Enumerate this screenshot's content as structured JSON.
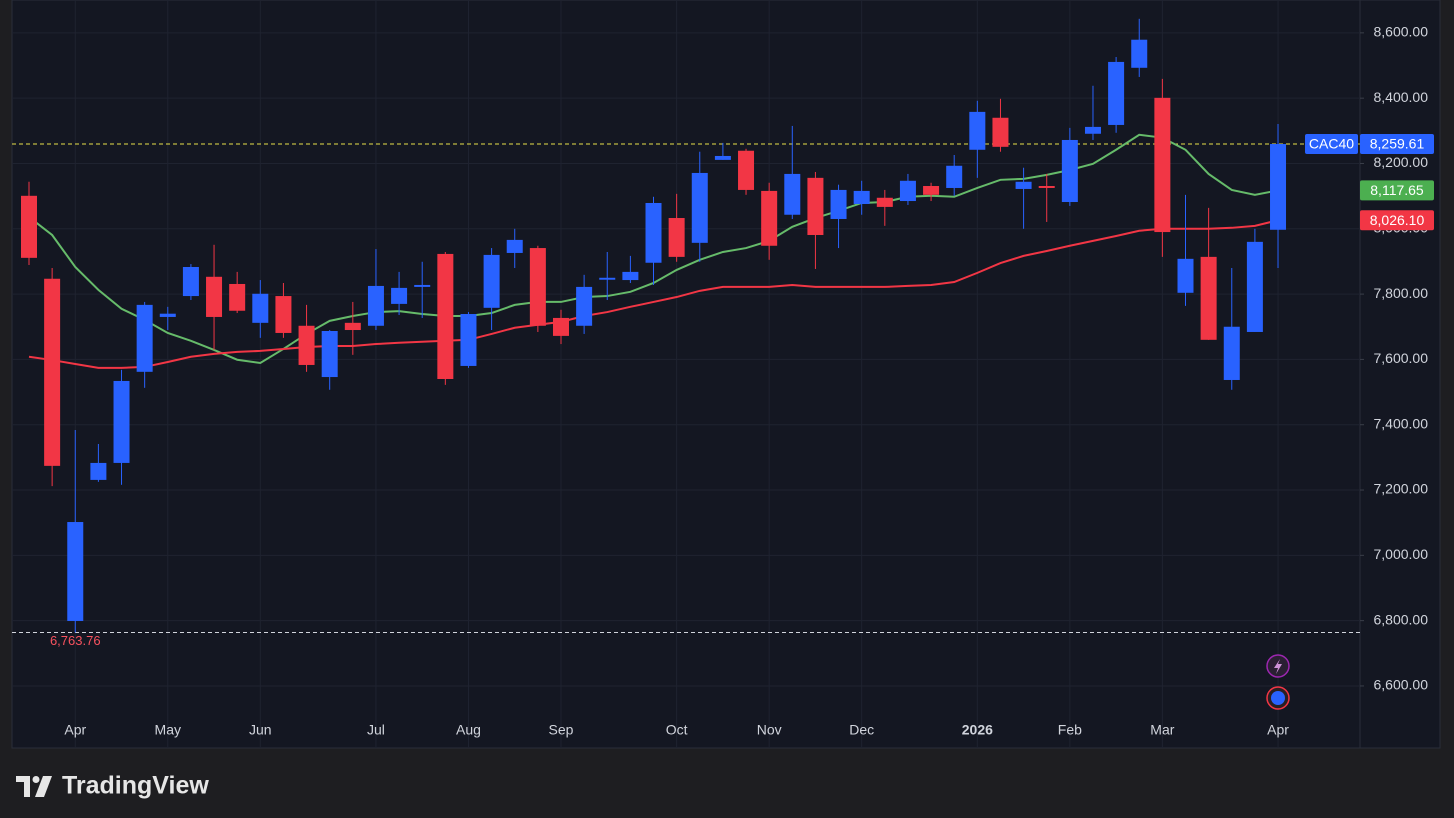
{
  "chart_data": {
    "type": "candlestick",
    "categories": [
      null,
      null,
      "Apr",
      null,
      null,
      null,
      "May",
      null,
      null,
      null,
      "Jun",
      null,
      null,
      null,
      null,
      "Jul",
      null,
      null,
      null,
      "Aug",
      null,
      null,
      null,
      "Sep",
      null,
      null,
      null,
      null,
      "Oct",
      null,
      null,
      null,
      "Nov",
      null,
      null,
      null,
      "Dec",
      null,
      null,
      null,
      null,
      "2026",
      null,
      null,
      null,
      "Feb",
      null,
      null,
      null,
      "Mar",
      null,
      null,
      null,
      null,
      "Apr"
    ],
    "series": [
      {
        "name": "CAC40",
        "up_color": "#2962ff",
        "down_color": "#f23645",
        "open": [
          8101,
          7847,
          6799,
          7231,
          7283,
          7562,
          7730,
          7794,
          7853,
          7831,
          7712,
          7794,
          7703,
          7546,
          7712,
          7703,
          7770,
          7822,
          7923,
          7580,
          7758,
          7926,
          7941,
          7727,
          7703,
          7844,
          7843,
          7896,
          8033,
          7957,
          8211,
          8239,
          8116,
          8043,
          8156,
          8030,
          8076,
          8095,
          8085,
          8131,
          8125,
          8242,
          8340,
          8122,
          8131,
          8082,
          8291,
          8318,
          8493,
          8401,
          7804,
          7914,
          7537,
          7684,
          7997
        ],
        "high": [
          8144,
          7880,
          7384,
          7341,
          7568,
          7776,
          7761,
          7892,
          7951,
          7868,
          7843,
          7834,
          7767,
          7690,
          7776,
          7938,
          7868,
          7899,
          7929,
          7745,
          7941,
          8000,
          7948,
          7752,
          7859,
          7929,
          7917,
          8098,
          8107,
          8236,
          8263,
          8245,
          8141,
          8315,
          8174,
          8135,
          8147,
          8119,
          8168,
          8141,
          8226,
          8392,
          8398,
          8187,
          8168,
          8309,
          8438,
          8526,
          8643,
          8459,
          8104,
          8064,
          7880,
          8000,
          8321
        ],
        "low": [
          7889,
          7212,
          6763.76,
          7225,
          7216,
          7513,
          7690,
          7782,
          7629,
          7742,
          7666,
          7666,
          7562,
          7507,
          7614,
          7690,
          7736,
          7727,
          7522,
          7574,
          7690,
          7880,
          7684,
          7647,
          7678,
          7782,
          7834,
          7828,
          7899,
          7899,
          8211,
          8104,
          7905,
          8030,
          7877,
          7941,
          8043,
          8009,
          8073,
          8085,
          8101,
          8156,
          8236,
          8000,
          8021,
          8070,
          8272,
          8294,
          8465,
          7914,
          7764,
          7660,
          7507,
          7684,
          7880
        ],
        "close": [
          7911,
          7274,
          7102,
          7283,
          7534,
          7767,
          7740,
          7883,
          7730,
          7749,
          7801,
          7681,
          7583,
          7687,
          7690,
          7825,
          7819,
          7828,
          7540,
          7739,
          7920,
          7966,
          7703,
          7672,
          7822,
          7850,
          7868,
          8079,
          7914,
          8171,
          8223,
          8119,
          7948,
          8168,
          7981,
          8119,
          8116,
          8067,
          8147,
          8104,
          8193,
          8358,
          8251,
          8144,
          8125,
          8272,
          8312,
          8511,
          8579,
          7990,
          7908,
          7660,
          7700,
          7960,
          8259.61
        ]
      }
    ],
    "moving_averages": [
      {
        "color": "#66bb6a",
        "values": [
          8036,
          7981,
          7883,
          7813,
          7755,
          7721,
          7681,
          7657,
          7629,
          7599,
          7589,
          7632,
          7678,
          7718,
          7733,
          7745,
          7748,
          7739,
          7733,
          7733,
          7742,
          7767,
          7776,
          7776,
          7791,
          7794,
          7807,
          7834,
          7874,
          7905,
          7929,
          7941,
          7963,
          8006,
          8033,
          8055,
          8079,
          8082,
          8098,
          8101,
          8098,
          8125,
          8150,
          8153,
          8165,
          8180,
          8199,
          8242,
          8288,
          8279,
          8242,
          8168,
          8119,
          8104,
          8117.65
        ]
      },
      {
        "color": "#f23645",
        "values": [
          7608,
          7598,
          7586,
          7574,
          7574,
          7577,
          7592,
          7608,
          7617,
          7623,
          7626,
          7632,
          7638,
          7641,
          7641,
          7647,
          7651,
          7654,
          7657,
          7660,
          7678,
          7697,
          7706,
          7715,
          7733,
          7745,
          7761,
          7776,
          7791,
          7810,
          7822,
          7822,
          7822,
          7828,
          7822,
          7822,
          7822,
          7822,
          7825,
          7828,
          7837,
          7865,
          7895,
          7917,
          7932,
          7948,
          7963,
          7978,
          7994,
          8000,
          8000,
          8000,
          8003,
          8009,
          8026.1
        ]
      }
    ],
    "ylim": [
      6410,
      8670
    ],
    "yticks": [
      {
        "value": 6600,
        "label": "6,600.00"
      },
      {
        "value": 6800,
        "label": "6,800.00"
      },
      {
        "value": 7000,
        "label": "7,000.00"
      },
      {
        "value": 7200,
        "label": "7,200.00"
      },
      {
        "value": 7400,
        "label": "7,400.00"
      },
      {
        "value": 7600,
        "label": "7,600.00"
      },
      {
        "value": 7800,
        "label": "7,800.00"
      },
      {
        "value": 8000,
        "label": "8,000.00"
      },
      {
        "value": 8200,
        "label": "8,200.00"
      },
      {
        "value": 8400,
        "label": "8,400.00"
      },
      {
        "value": 8600,
        "label": "8,600.00"
      }
    ],
    "grid": true,
    "reference_lines": [
      {
        "value": 8259.61,
        "color": "#e8e04a"
      },
      {
        "value": 6763.76,
        "color": "#d1d4dc"
      }
    ],
    "low_label": {
      "value": 6763.76,
      "label": "6,763.76",
      "color": "#f7525f"
    },
    "price_labels": [
      {
        "name": "CAC40",
        "value": 8259.61,
        "label": "8,259.61",
        "color": "#2962ff"
      },
      {
        "value": 8117.65,
        "label": "8,117.65",
        "color": "#4caf50"
      },
      {
        "value": 8026.1,
        "label": "8,026.10",
        "color": "#f23645"
      }
    ]
  },
  "footer": {
    "brand": "TradingView"
  }
}
